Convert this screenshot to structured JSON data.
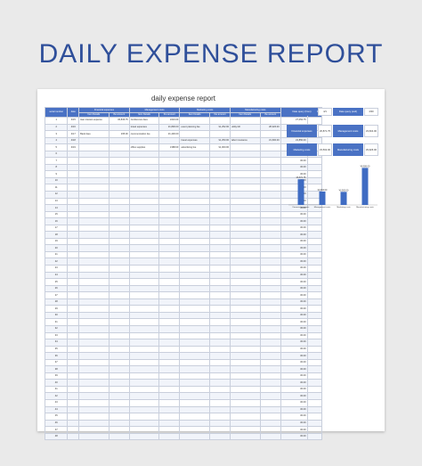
{
  "hero_title": "DAILY EXPENSE REPORT",
  "sheet_title": "daily expense report",
  "headers": {
    "serial_number": "serial number",
    "date": "date",
    "groups": [
      "Financial expenses",
      "Management costs",
      "Marketing costs",
      "Manufacturing costs"
    ],
    "sub_details": "Item Details",
    "sub_amount": "the amount",
    "total": "total",
    "remark": "Remark"
  },
  "rows": [
    {
      "n": "1",
      "date": "4/15",
      "f_d": "loan interest expense",
      "f_a": "¥6,836.75",
      "m_d": "Conference fees",
      "m_a": "¥216.00",
      "mk_d": "",
      "mk_a": "",
      "mf_d": "",
      "mf_a": "",
      "total": "¥7,052.75"
    },
    {
      "n": "2",
      "date": "4/16",
      "f_d": "",
      "f_a": "",
      "m_d": "travel expenses",
      "m_a": "¥1,800.00",
      "mk_d": "event planning fee",
      "mk_a": "¥1,252.00",
      "mf_d": "utility bill",
      "mf_a": "¥8,326.00",
      "total": "¥11,378.00"
    },
    {
      "n": "3",
      "date": "4/17",
      "f_d": "Bank fees",
      "f_a": "¥35.00",
      "m_d": "communication fee",
      "m_a": "¥1,400.00",
      "mk_d": "",
      "mk_a": "",
      "mf_d": "",
      "mf_a": "",
      "total": "¥1,435.00"
    },
    {
      "n": "4",
      "date": "4/18",
      "f_d": "",
      "f_a": "",
      "m_d": "",
      "m_a": "",
      "mk_d": "travel expenses",
      "mk_a": "¥1,250.00",
      "mf_d": "labor insurance",
      "mf_a": "¥1,600.00",
      "total": "¥2,850.00"
    },
    {
      "n": "5",
      "date": "4/19",
      "f_d": "",
      "f_a": "",
      "m_d": "office supplies",
      "m_a": "¥188.00",
      "mk_d": "advertising fee",
      "mk_a": "¥1,000.00",
      "mf_d": "",
      "mf_a": "",
      "total": "¥1,188.00"
    },
    {
      "n": "6",
      "total": "¥0.00"
    },
    {
      "n": "7",
      "total": "¥0.00"
    },
    {
      "n": "8",
      "total": "¥0.00"
    },
    {
      "n": "9",
      "total": "¥0.00"
    },
    {
      "n": "10",
      "total": "¥0.00"
    },
    {
      "n": "11",
      "total": "¥0.00"
    },
    {
      "n": "12",
      "total": "¥0.00"
    },
    {
      "n": "13",
      "total": "¥0.00"
    },
    {
      "n": "14",
      "total": "¥0.00"
    },
    {
      "n": "15",
      "total": "¥0.00"
    },
    {
      "n": "16",
      "total": "¥0.00"
    },
    {
      "n": "17",
      "total": "¥0.00"
    },
    {
      "n": "18",
      "total": "¥0.00"
    },
    {
      "n": "19",
      "total": "¥0.00"
    },
    {
      "n": "20",
      "total": "¥0.00"
    },
    {
      "n": "21",
      "total": "¥0.00"
    },
    {
      "n": "22",
      "total": "¥0.00"
    },
    {
      "n": "23",
      "total": "¥0.00"
    },
    {
      "n": "24",
      "total": "¥0.00"
    },
    {
      "n": "25",
      "total": "¥0.00"
    },
    {
      "n": "26",
      "total": "¥0.00"
    },
    {
      "n": "27",
      "total": "¥0.00"
    },
    {
      "n": "28",
      "total": "¥0.00"
    },
    {
      "n": "29",
      "total": "¥0.00"
    },
    {
      "n": "30",
      "total": "¥0.00"
    },
    {
      "n": "31",
      "total": "¥0.00"
    },
    {
      "n": "32",
      "total": "¥0.00"
    },
    {
      "n": "33",
      "total": "¥0.00"
    },
    {
      "n": "34",
      "total": "¥0.00"
    },
    {
      "n": "35",
      "total": "¥0.00"
    },
    {
      "n": "36",
      "total": "¥0.00"
    },
    {
      "n": "37",
      "total": "¥0.00"
    },
    {
      "n": "38",
      "total": "¥0.00"
    },
    {
      "n": "39",
      "total": "¥0.00"
    },
    {
      "n": "40",
      "total": "¥0.00"
    },
    {
      "n": "41",
      "total": "¥0.00"
    },
    {
      "n": "42",
      "total": "¥0.00"
    },
    {
      "n": "43",
      "total": "¥0.00"
    },
    {
      "n": "44",
      "total": "¥0.00"
    },
    {
      "n": "45",
      "total": "¥0.00"
    },
    {
      "n": "46",
      "total": "¥0.00"
    },
    {
      "n": "47",
      "total": "¥0.00"
    },
    {
      "n": "48",
      "total": "¥0.00"
    }
  ],
  "summary": {
    "date_start_label": "Date query (from)",
    "date_start_value": "4/1",
    "date_end_label": "Date query (end)",
    "date_end_value": "4/30",
    "financial_label": "Financial expenses",
    "financial_value": "¥6,871.75",
    "management_label": "Management costs",
    "management_value": "¥3,604.00",
    "marketing_label": "Marketing costs",
    "marketing_value": "¥3,502.00",
    "manufacturing_label": "Manufacturing costs",
    "manufacturing_value": "¥9,926.00"
  },
  "colors": {
    "accent": "#4a72c4",
    "title": "#2f4f9a",
    "bar": "#3f6cc3"
  },
  "chart_data": {
    "type": "bar",
    "categories": [
      "Financial expenses",
      "Management costs",
      "Marketing costs",
      "Manufacturing costs"
    ],
    "values": [
      6871.75,
      3604.0,
      3502.0,
      9926.0
    ],
    "value_labels": [
      "¥6,871.75",
      "¥3,604.00",
      "¥3,502.00",
      "¥9,926.00"
    ],
    "ylim": [
      0,
      10500
    ]
  }
}
